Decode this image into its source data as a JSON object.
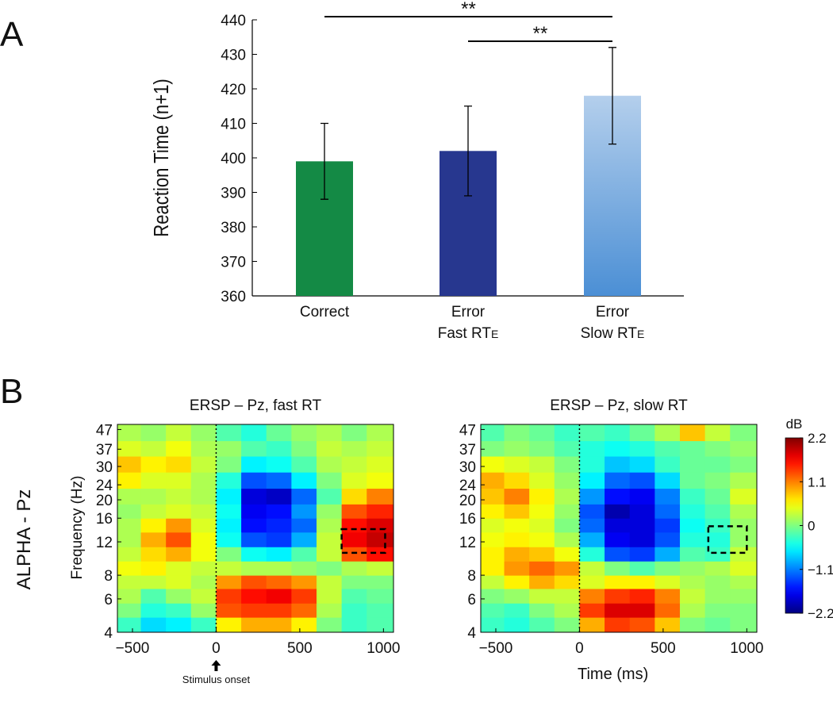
{
  "panel_labels": [
    "A",
    "B"
  ],
  "row_label": "ALPHA - Pz",
  "chart_data": [
    {
      "type": "bar",
      "ylabel": "Reaction Time (n+1)",
      "categories": [
        {
          "lines": [
            "Correct"
          ]
        },
        {
          "lines": [
            "Error",
            "Fast RT"
          ],
          "subscript": "E"
        },
        {
          "lines": [
            "Error",
            "Slow RT"
          ],
          "subscript": "E"
        }
      ],
      "values": [
        399,
        402,
        418
      ],
      "error": [
        11,
        13,
        14
      ],
      "colors": [
        "#148a45",
        "#27378f",
        {
          "top": "#b4cfec",
          "bottom": "#4b8fd5"
        }
      ],
      "ylim": [
        360,
        440
      ],
      "yticks": [
        360,
        370,
        380,
        390,
        400,
        410,
        420,
        430,
        440
      ],
      "significance": [
        {
          "from": 0,
          "to": 2,
          "label": "**"
        },
        {
          "from": 1,
          "to": 2,
          "label": "**"
        }
      ]
    },
    {
      "type": "heatmap",
      "title": "ERSP – Pz, fast RT",
      "ylabel": "Frequency (Hz)",
      "annotation": "Stimulus onset",
      "xbins": [
        -590,
        -450,
        -300,
        -150,
        0,
        150,
        300,
        450,
        600,
        750,
        900,
        1060
      ],
      "ybins": [
        4,
        4.8,
        5.7,
        6.8,
        8,
        9.5,
        11.3,
        13.5,
        16,
        19,
        23,
        28,
        34,
        41,
        50
      ],
      "z": [
        [
          -0.3,
          -0.7,
          -0.6,
          -0.3,
          0.6,
          0.9,
          0.9,
          0.6,
          0.0,
          -0.3,
          -0.2
        ],
        [
          0.0,
          -0.4,
          -0.3,
          0.1,
          1.3,
          1.4,
          1.4,
          1.2,
          0.2,
          -0.3,
          -0.2
        ],
        [
          0.2,
          -0.2,
          0.1,
          0.3,
          1.4,
          1.6,
          1.7,
          1.4,
          0.3,
          -0.2,
          -0.1
        ],
        [
          0.3,
          0.3,
          0.4,
          0.2,
          1.0,
          1.3,
          1.2,
          1.0,
          0.3,
          0.0,
          0.0
        ],
        [
          0.5,
          0.6,
          0.4,
          0.3,
          0.3,
          0.2,
          0.2,
          0.1,
          0.0,
          0.2,
          0.3
        ],
        [
          0.3,
          0.7,
          0.9,
          0.5,
          0.0,
          -0.5,
          -0.6,
          -0.2,
          0.3,
          1.3,
          1.6
        ],
        [
          0.2,
          0.9,
          1.3,
          0.5,
          -0.5,
          -1.3,
          -1.4,
          -0.9,
          0.3,
          1.7,
          1.9
        ],
        [
          0.2,
          0.6,
          1.0,
          0.4,
          -0.6,
          -1.6,
          -1.5,
          -1.2,
          0.2,
          1.6,
          1.8
        ],
        [
          0.1,
          0.3,
          0.4,
          0.3,
          -0.5,
          -1.7,
          -1.6,
          -1.0,
          0.1,
          1.3,
          1.5
        ],
        [
          0.2,
          0.2,
          0.3,
          0.2,
          -0.6,
          -1.8,
          -1.9,
          -1.2,
          -0.2,
          0.7,
          1.1
        ],
        [
          0.6,
          0.4,
          0.4,
          0.2,
          -0.4,
          -1.3,
          -1.2,
          -0.6,
          0.0,
          0.4,
          0.5
        ],
        [
          0.8,
          0.6,
          0.7,
          0.3,
          0.0,
          -0.6,
          -0.5,
          -0.2,
          0.2,
          0.3,
          0.4
        ],
        [
          0.4,
          0.3,
          0.5,
          0.2,
          0.1,
          -0.2,
          -0.3,
          0.0,
          0.3,
          0.2,
          0.3
        ],
        [
          0.2,
          0.1,
          0.3,
          0.1,
          -0.2,
          -0.4,
          -0.1,
          0.1,
          0.2,
          0.0,
          0.2
        ]
      ],
      "xlim": [
        -590,
        1060
      ],
      "xticks": [
        {
          "value": -500,
          "label": "−500"
        },
        0,
        500,
        1000
      ],
      "ylim": [
        4,
        50
      ],
      "ylog": true,
      "yticks": [
        4,
        6,
        8,
        12,
        16,
        20,
        24,
        30,
        37,
        47
      ],
      "roi": {
        "x": [
          750,
          1010
        ],
        "y": [
          10.5,
          14
        ]
      }
    },
    {
      "type": "heatmap",
      "title": "ERSP – Pz, slow RT",
      "xlabel": "Time (ms)",
      "xbins": [
        -590,
        -450,
        -300,
        -150,
        0,
        150,
        300,
        450,
        600,
        750,
        900,
        1060
      ],
      "ybins": [
        4,
        4.8,
        5.7,
        6.8,
        8,
        9.5,
        11.3,
        13.5,
        16,
        19,
        23,
        28,
        34,
        41,
        50
      ],
      "z": [
        [
          -0.3,
          -0.4,
          -0.2,
          0.0,
          0.9,
          1.4,
          1.3,
          0.8,
          0.0,
          -0.1,
          0.0
        ],
        [
          -0.2,
          -0.3,
          0.0,
          0.2,
          1.4,
          1.8,
          1.8,
          1.2,
          0.2,
          0.0,
          0.0
        ],
        [
          0.0,
          0.1,
          0.3,
          0.3,
          1.1,
          1.4,
          1.5,
          1.1,
          0.3,
          0.1,
          0.1
        ],
        [
          0.3,
          0.6,
          0.9,
          0.7,
          0.4,
          0.6,
          0.6,
          0.4,
          0.2,
          0.1,
          0.2
        ],
        [
          0.6,
          1.0,
          1.2,
          1.0,
          0.3,
          0.0,
          -0.2,
          0.0,
          0.1,
          0.2,
          0.4
        ],
        [
          0.6,
          0.9,
          0.8,
          0.5,
          -0.4,
          -1.3,
          -1.4,
          -0.9,
          -0.2,
          -0.3,
          0.3
        ],
        [
          0.5,
          0.6,
          0.5,
          0.2,
          -0.9,
          -1.7,
          -1.8,
          -1.3,
          -0.4,
          -0.4,
          0.1
        ],
        [
          0.4,
          0.5,
          0.4,
          0.0,
          -1.2,
          -1.8,
          -1.8,
          -1.4,
          -0.5,
          -0.3,
          0.1
        ],
        [
          0.6,
          0.8,
          0.5,
          0.1,
          -1.3,
          -2.0,
          -1.8,
          -1.2,
          -0.4,
          -0.2,
          0.2
        ],
        [
          0.8,
          1.1,
          0.6,
          0.2,
          -1.0,
          -1.6,
          -1.7,
          -1.1,
          -0.3,
          -0.1,
          0.4
        ],
        [
          0.9,
          0.7,
          0.4,
          0.1,
          -0.6,
          -1.2,
          -1.3,
          -0.7,
          -0.1,
          0.0,
          0.2
        ],
        [
          0.5,
          0.4,
          0.3,
          0.0,
          -0.4,
          -0.8,
          -0.7,
          -0.3,
          -0.1,
          -0.1,
          0.0
        ],
        [
          0.0,
          0.1,
          0.0,
          -0.2,
          -0.4,
          -0.5,
          -0.4,
          -0.2,
          -0.1,
          0.0,
          0.1
        ],
        [
          -0.2,
          0.0,
          -0.1,
          -0.3,
          -0.2,
          -0.3,
          -0.1,
          0.2,
          0.8,
          0.3,
          0.0
        ]
      ],
      "xlim": [
        -590,
        1060
      ],
      "xticks": [
        {
          "value": -500,
          "label": "−500"
        },
        0,
        500,
        1000
      ],
      "ylim": [
        4,
        50
      ],
      "ylog": true,
      "yticks": [
        4,
        6,
        8,
        12,
        16,
        20,
        24,
        30,
        37,
        47
      ],
      "roi": {
        "x": [
          770,
          1000
        ],
        "y": [
          10.5,
          14.5
        ]
      },
      "colorbar": {
        "label": "dB",
        "colormap": "jet",
        "lim": [
          -2.2,
          2.2
        ],
        "ticks": [
          {
            "value": -2.2,
            "label": "−2.2"
          },
          {
            "value": -1.1,
            "label": "−1.1"
          },
          0,
          1.1,
          2.2
        ]
      }
    }
  ]
}
